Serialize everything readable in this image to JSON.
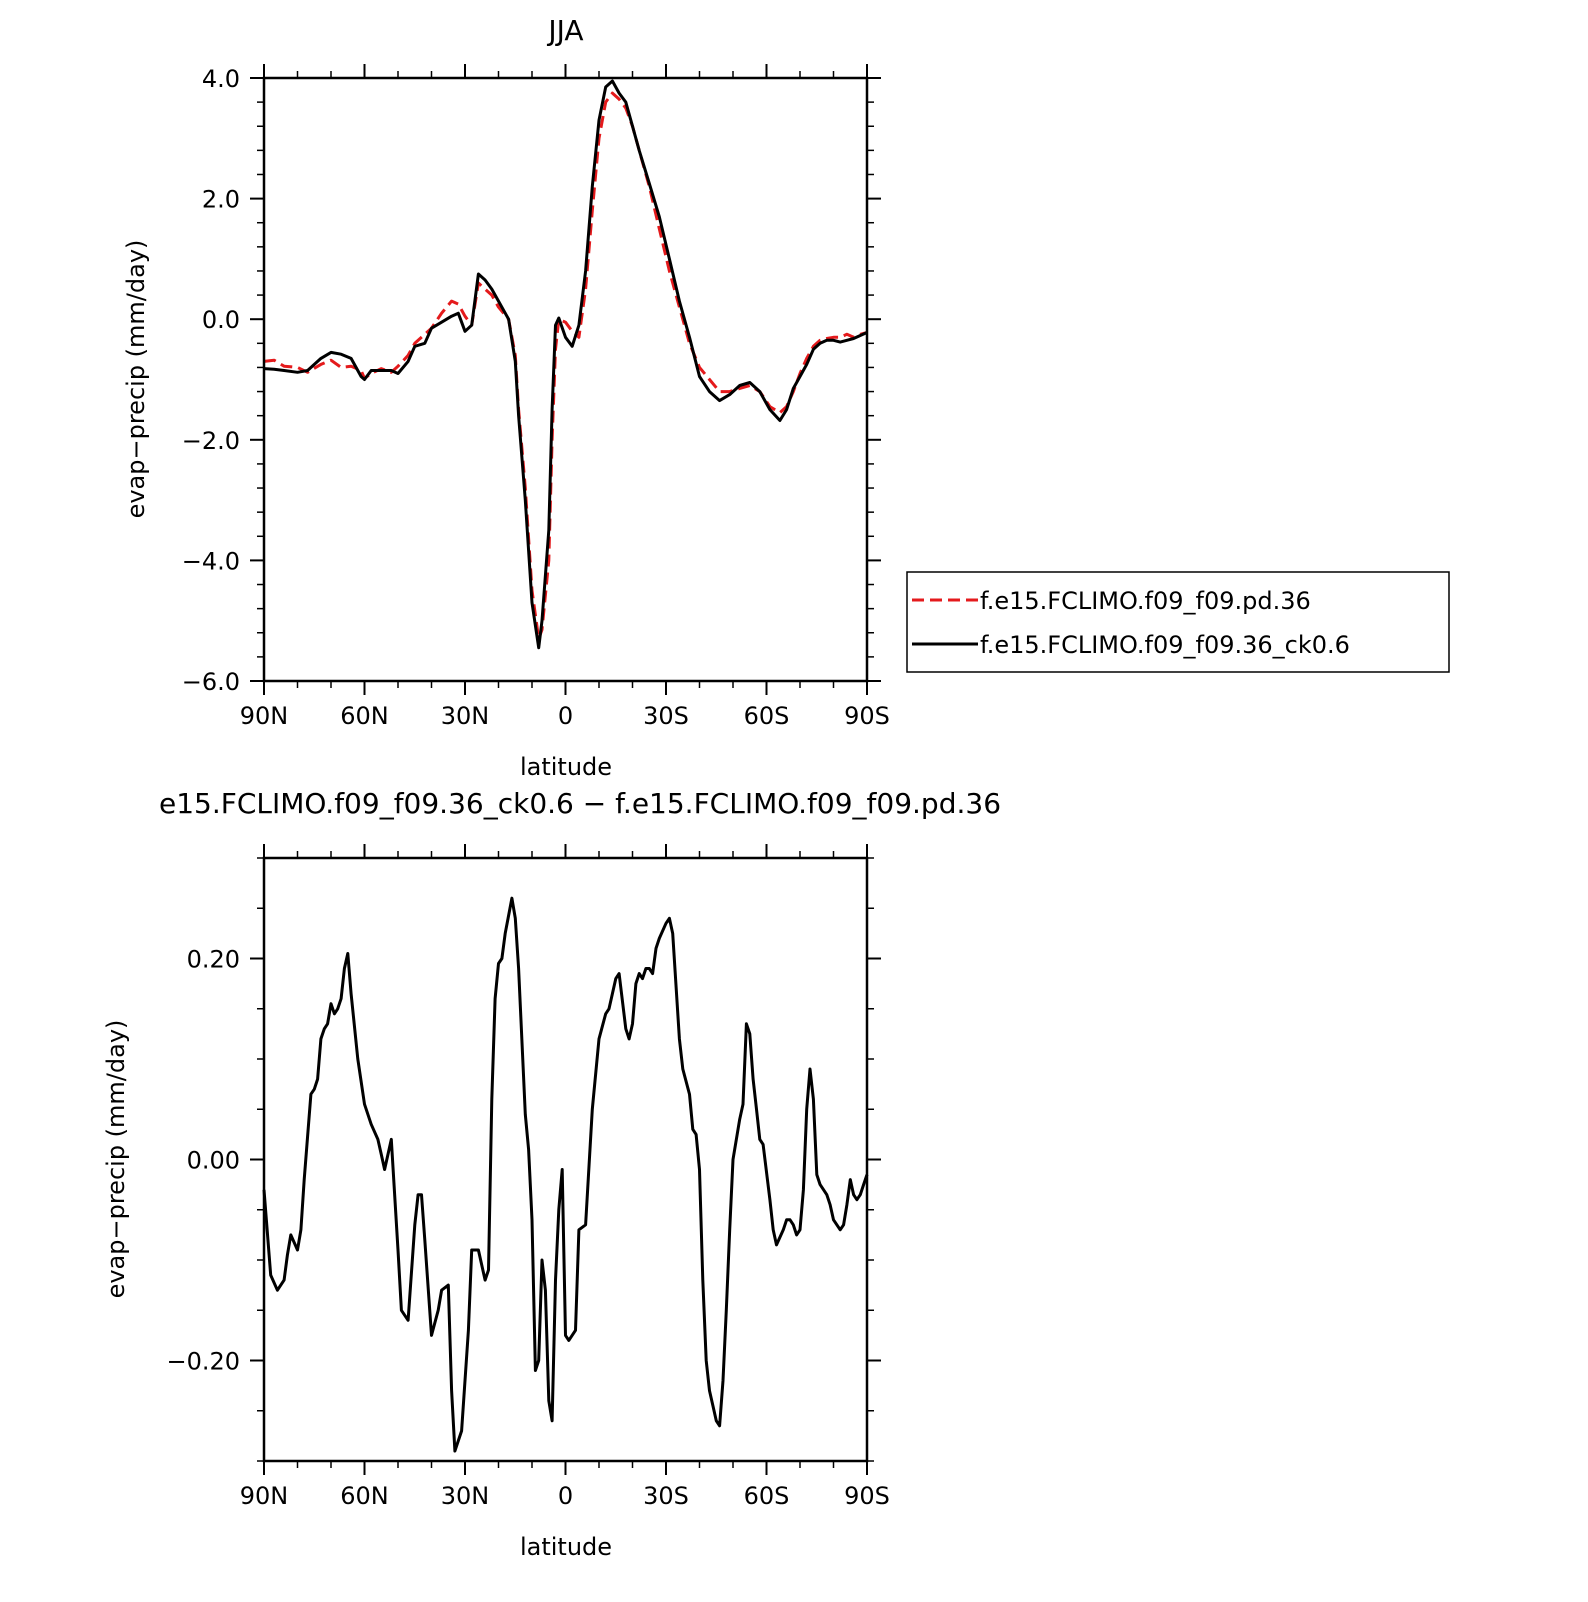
{
  "chart_data": [
    {
      "type": "line",
      "title": "JJA",
      "xlabel": "latitude",
      "ylabel": "evap−precip (mm/day)",
      "xlim": [
        -90,
        90
      ],
      "ylim": [
        -6.0,
        4.0
      ],
      "x_tick_values": [
        -90,
        -60,
        -30,
        0,
        30,
        60,
        90
      ],
      "x_tick_labels": [
        "90N",
        "60N",
        "30N",
        "0",
        "30S",
        "60S",
        "90S"
      ],
      "y_tick_values": [
        4.0,
        2.0,
        0.0,
        -2.0,
        -4.0,
        -6.0
      ],
      "y_tick_labels": [
        "4.0",
        "2.0",
        "0.0",
        "−2.0",
        "−4.0",
        "−6.0"
      ],
      "legend_position": "right",
      "series": [
        {
          "name": "f.e15.FCLIMO.f09_f09.pd.36",
          "color": "#e41a1c",
          "dash": "dashed",
          "x": [
            -90,
            -87,
            -84,
            -80,
            -77,
            -73,
            -70,
            -67,
            -64,
            -61,
            -60,
            -58,
            -55,
            -52,
            -50,
            -47,
            -45,
            -42,
            -40,
            -37,
            -34,
            -32,
            -30,
            -28,
            -26,
            -24,
            -22,
            -20,
            -17,
            -15,
            -14,
            -12,
            -10,
            -8,
            -7,
            -5,
            -4,
            -3,
            -2,
            0,
            2,
            4,
            6,
            8,
            10,
            12,
            14,
            16,
            18,
            20,
            22,
            25,
            28,
            31,
            34,
            37,
            40,
            43,
            46,
            49,
            52,
            55,
            58,
            61,
            64,
            66,
            68,
            70,
            72,
            74,
            76,
            78,
            80,
            82,
            84,
            86,
            88,
            90
          ],
          "y": [
            -0.7,
            -0.68,
            -0.78,
            -0.8,
            -0.88,
            -0.75,
            -0.68,
            -0.8,
            -0.78,
            -0.85,
            -0.98,
            -0.9,
            -0.82,
            -0.88,
            -0.78,
            -0.6,
            -0.4,
            -0.25,
            -0.15,
            0.1,
            0.3,
            0.25,
            0.05,
            -0.1,
            0.6,
            0.5,
            0.4,
            0.2,
            0.0,
            -0.6,
            -1.5,
            -2.8,
            -4.5,
            -5.3,
            -5.15,
            -4.0,
            -2.0,
            -0.5,
            0.0,
            -0.05,
            -0.2,
            -0.3,
            0.5,
            1.8,
            3.0,
            3.6,
            3.75,
            3.65,
            3.5,
            3.2,
            2.8,
            2.2,
            1.5,
            0.8,
            0.2,
            -0.4,
            -0.8,
            -1.0,
            -1.2,
            -1.2,
            -1.15,
            -1.1,
            -1.2,
            -1.45,
            -1.55,
            -1.45,
            -1.2,
            -0.9,
            -0.65,
            -0.45,
            -0.35,
            -0.32,
            -0.3,
            -0.3,
            -0.25,
            -0.3,
            -0.25,
            -0.22
          ]
        },
        {
          "name": "f.e15.FCLIMO.f09_f09.36_ck0.6",
          "color": "#000000",
          "dash": "solid",
          "x": [
            -90,
            -87,
            -84,
            -80,
            -77,
            -73,
            -70,
            -67,
            -64,
            -61,
            -60,
            -58,
            -55,
            -52,
            -50,
            -47,
            -45,
            -42,
            -40,
            -37,
            -34,
            -32,
            -30,
            -28,
            -26,
            -24,
            -22,
            -20,
            -17,
            -15,
            -14,
            -12,
            -10,
            -8,
            -7,
            -5,
            -4,
            -3,
            -2,
            0,
            2,
            4,
            6,
            8,
            10,
            12,
            14,
            16,
            18,
            20,
            22,
            25,
            28,
            31,
            34,
            37,
            40,
            43,
            46,
            49,
            52,
            55,
            58,
            61,
            64,
            66,
            68,
            70,
            72,
            74,
            76,
            78,
            80,
            82,
            84,
            86,
            88,
            90
          ],
          "y": [
            -0.82,
            -0.83,
            -0.85,
            -0.88,
            -0.85,
            -0.65,
            -0.55,
            -0.58,
            -0.65,
            -0.95,
            -1.0,
            -0.85,
            -0.85,
            -0.85,
            -0.9,
            -0.7,
            -0.45,
            -0.4,
            -0.15,
            -0.05,
            0.05,
            0.1,
            -0.2,
            -0.1,
            0.75,
            0.65,
            0.5,
            0.3,
            0.0,
            -0.7,
            -1.6,
            -3.0,
            -4.7,
            -5.45,
            -5.0,
            -3.5,
            -1.5,
            -0.1,
            0.02,
            -0.3,
            -0.45,
            -0.1,
            0.8,
            2.2,
            3.3,
            3.85,
            3.95,
            3.75,
            3.6,
            3.2,
            2.8,
            2.25,
            1.7,
            1.0,
            0.3,
            -0.3,
            -0.95,
            -1.2,
            -1.35,
            -1.25,
            -1.1,
            -1.05,
            -1.2,
            -1.5,
            -1.68,
            -1.5,
            -1.15,
            -0.95,
            -0.75,
            -0.5,
            -0.4,
            -0.35,
            -0.35,
            -0.38,
            -0.35,
            -0.32,
            -0.27,
            -0.22
          ]
        }
      ]
    },
    {
      "type": "line",
      "title": "e15.FCLIMO.f09_f09.36_ck0.6 − f.e15.FCLIMO.f09_f09.pd.36",
      "xlabel": "latitude",
      "ylabel": "evap−precip (mm/day)",
      "xlim": [
        -90,
        90
      ],
      "ylim": [
        -0.3,
        0.3
      ],
      "x_tick_values": [
        -90,
        -60,
        -30,
        0,
        30,
        60,
        90
      ],
      "x_tick_labels": [
        "90N",
        "60N",
        "30N",
        "0",
        "30S",
        "60S",
        "90S"
      ],
      "y_tick_values": [
        0.2,
        0.0,
        -0.2
      ],
      "y_tick_labels": [
        "0.20",
        "0.00",
        "−0.20"
      ],
      "series": [
        {
          "color": "#000000",
          "dash": "solid",
          "x": [
            -90,
            -88,
            -86,
            -84,
            -83,
            -82,
            -80,
            -79,
            -78,
            -76,
            -75,
            -74,
            -73,
            -72,
            -71,
            -70,
            -69,
            -68,
            -67,
            -66,
            -65,
            -64,
            -62,
            -60,
            -58,
            -56,
            -55,
            -54,
            -52,
            -50,
            -49,
            -47,
            -45,
            -44,
            -43,
            -42,
            -40,
            -38,
            -37,
            -35,
            -34,
            -33,
            -31,
            -29,
            -28,
            -26,
            -24,
            -23,
            -22,
            -21,
            -20,
            -19,
            -18,
            -16,
            -15,
            -14,
            -12,
            -11,
            -10,
            -9,
            -8,
            -7,
            -6,
            -5,
            -4,
            -3,
            -2,
            -1,
            0,
            1,
            3,
            4,
            6,
            8,
            10,
            12,
            13,
            14,
            15,
            16,
            18,
            19,
            20,
            21,
            22,
            23,
            24,
            25,
            26,
            27,
            28,
            30,
            31,
            32,
            34,
            35,
            37,
            38,
            39,
            40,
            41,
            42,
            43,
            44,
            45,
            46,
            47,
            48,
            49,
            50,
            52,
            53,
            54,
            55,
            56,
            57,
            58,
            59,
            61,
            62,
            63,
            65,
            66,
            67,
            68,
            69,
            70,
            71,
            72,
            73,
            74,
            75,
            76,
            77,
            78,
            79,
            80,
            82,
            83,
            84,
            85,
            86,
            87,
            88,
            89,
            90
          ],
          "y": [
            -0.03,
            -0.115,
            -0.13,
            -0.12,
            -0.095,
            -0.075,
            -0.09,
            -0.07,
            -0.02,
            0.065,
            0.07,
            0.08,
            0.12,
            0.13,
            0.135,
            0.155,
            0.145,
            0.15,
            0.16,
            0.19,
            0.205,
            0.165,
            0.1,
            0.055,
            0.035,
            0.02,
            0.005,
            -0.01,
            0.02,
            -0.09,
            -0.15,
            -0.16,
            -0.065,
            -0.035,
            -0.035,
            -0.08,
            -0.175,
            -0.15,
            -0.13,
            -0.125,
            -0.23,
            -0.29,
            -0.27,
            -0.17,
            -0.09,
            -0.09,
            -0.12,
            -0.11,
            0.06,
            0.16,
            0.195,
            0.2,
            0.225,
            0.26,
            0.24,
            0.19,
            0.045,
            0.01,
            -0.06,
            -0.21,
            -0.2,
            -0.1,
            -0.13,
            -0.24,
            -0.26,
            -0.12,
            -0.05,
            -0.01,
            -0.175,
            -0.18,
            -0.17,
            -0.07,
            -0.065,
            0.05,
            0.12,
            0.145,
            0.15,
            0.165,
            0.18,
            0.185,
            0.13,
            0.12,
            0.135,
            0.175,
            0.185,
            0.18,
            0.19,
            0.19,
            0.185,
            0.21,
            0.22,
            0.235,
            0.24,
            0.225,
            0.12,
            0.09,
            0.065,
            0.03,
            0.025,
            -0.01,
            -0.12,
            -0.2,
            -0.23,
            -0.245,
            -0.26,
            -0.265,
            -0.22,
            -0.15,
            -0.07,
            0.0,
            0.04,
            0.055,
            0.135,
            0.125,
            0.08,
            0.05,
            0.02,
            0.015,
            -0.04,
            -0.07,
            -0.085,
            -0.07,
            -0.06,
            -0.06,
            -0.065,
            -0.075,
            -0.07,
            -0.03,
            0.05,
            0.09,
            0.06,
            -0.015,
            -0.025,
            -0.03,
            -0.035,
            -0.045,
            -0.06,
            -0.07,
            -0.065,
            -0.045,
            -0.02,
            -0.035,
            -0.04,
            -0.035,
            -0.025,
            -0.015
          ]
        }
      ]
    }
  ]
}
